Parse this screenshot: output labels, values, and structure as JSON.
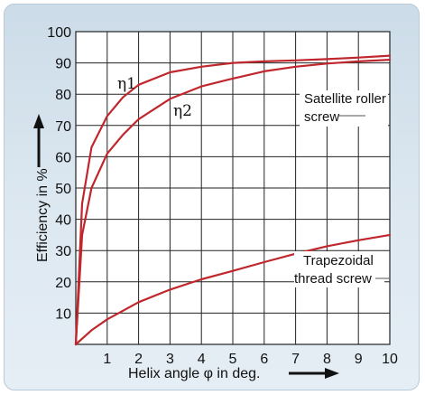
{
  "chart_data": {
    "type": "line",
    "title": "",
    "xlabel": "Helix angle φ in deg.",
    "ylabel": "Efficiency in %",
    "xlim": [
      0,
      10
    ],
    "ylim": [
      0,
      100
    ],
    "xticks": [
      "1",
      "2",
      "3",
      "4",
      "5",
      "6",
      "7",
      "8",
      "9",
      "10"
    ],
    "yticks": [
      "10",
      "20",
      "30",
      "40",
      "50",
      "60",
      "70",
      "80",
      "90",
      "100"
    ],
    "grid": true,
    "line_color": "#c0272d",
    "series": [
      {
        "name": "η1",
        "x": [
          0,
          0.2,
          0.5,
          1,
          1.5,
          2,
          3,
          4,
          5,
          6,
          7,
          8,
          9,
          10
        ],
        "y": [
          0,
          45,
          63,
          73,
          79,
          83,
          87,
          88.8,
          90,
          90.5,
          90.8,
          91.2,
          91.7,
          92.3
        ]
      },
      {
        "name": "η2",
        "x": [
          0,
          0.2,
          0.5,
          1,
          1.5,
          2,
          3,
          4,
          5,
          6,
          7,
          8,
          9,
          10
        ],
        "y": [
          0,
          35,
          50,
          61,
          67,
          72,
          78.5,
          82.5,
          85,
          87.3,
          88.8,
          89.8,
          90.5,
          91
        ]
      },
      {
        "name": "Trapezoidal thread screw",
        "x": [
          0,
          0.5,
          1,
          2,
          3,
          4,
          5,
          6,
          7,
          8,
          9,
          10
        ],
        "y": [
          0,
          4.5,
          8,
          13.5,
          17.5,
          20.8,
          23.5,
          26.3,
          29,
          31.4,
          33.3,
          35
        ]
      }
    ],
    "annotations": {
      "eta1": "η1",
      "eta2": "η2",
      "satellite_line1": "Satellite roller",
      "satellite_line2": "screw",
      "trap_line1": "Trapezoidal",
      "trap_line2": "thread screw"
    }
  }
}
